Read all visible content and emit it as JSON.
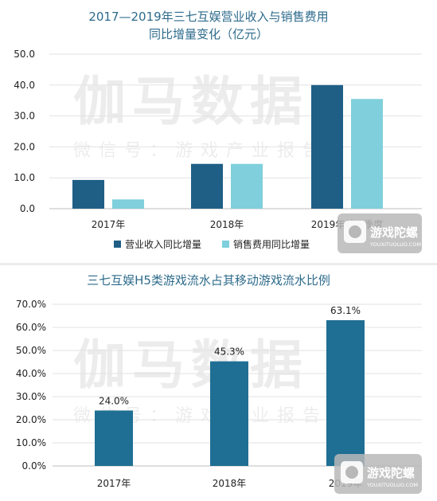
{
  "chart_data": [
    {
      "type": "bar",
      "title": "2017—2019年三七互娱营业收入与销售费用",
      "subtitle": "同比增量变化（亿元）",
      "categories": [
        "2017年",
        "2018年",
        "2019年前三季度"
      ],
      "series": [
        {
          "name": "营业收入同比增量",
          "values": [
            9.3,
            14.5,
            40.0
          ],
          "color": "#1f5f86"
        },
        {
          "name": "销售费用同比增量",
          "values": [
            3.0,
            14.5,
            35.5
          ],
          "color": "#7fd0dc"
        }
      ],
      "yticks": [
        "0.0",
        "10.0",
        "20.0",
        "30.0",
        "40.0",
        "50.0"
      ],
      "ylim": [
        0,
        50
      ],
      "grid": true,
      "legend": "bottom"
    },
    {
      "type": "bar",
      "title": "三七互娱H5类游戏流水占其移动游戏流水比例",
      "categories": [
        "2017年",
        "2018年",
        "2019年"
      ],
      "values": [
        24.0,
        45.3,
        63.1
      ],
      "data_labels": [
        "24.0%",
        "45.3%",
        "63.1%"
      ],
      "color": "#1f6f94",
      "yticks": [
        "0.0%",
        "10.0%",
        "20.0%",
        "30.0%",
        "40.0%",
        "50.0%",
        "60.0%",
        "70.0%"
      ],
      "ylim": [
        0,
        70
      ],
      "grid": true
    }
  ],
  "watermark": {
    "main": "伽马数据",
    "sub": "微信号：游戏产业报告"
  },
  "logo": {
    "name": "游戏陀螺",
    "url_text": "YOUXITUOLUO.COM"
  }
}
